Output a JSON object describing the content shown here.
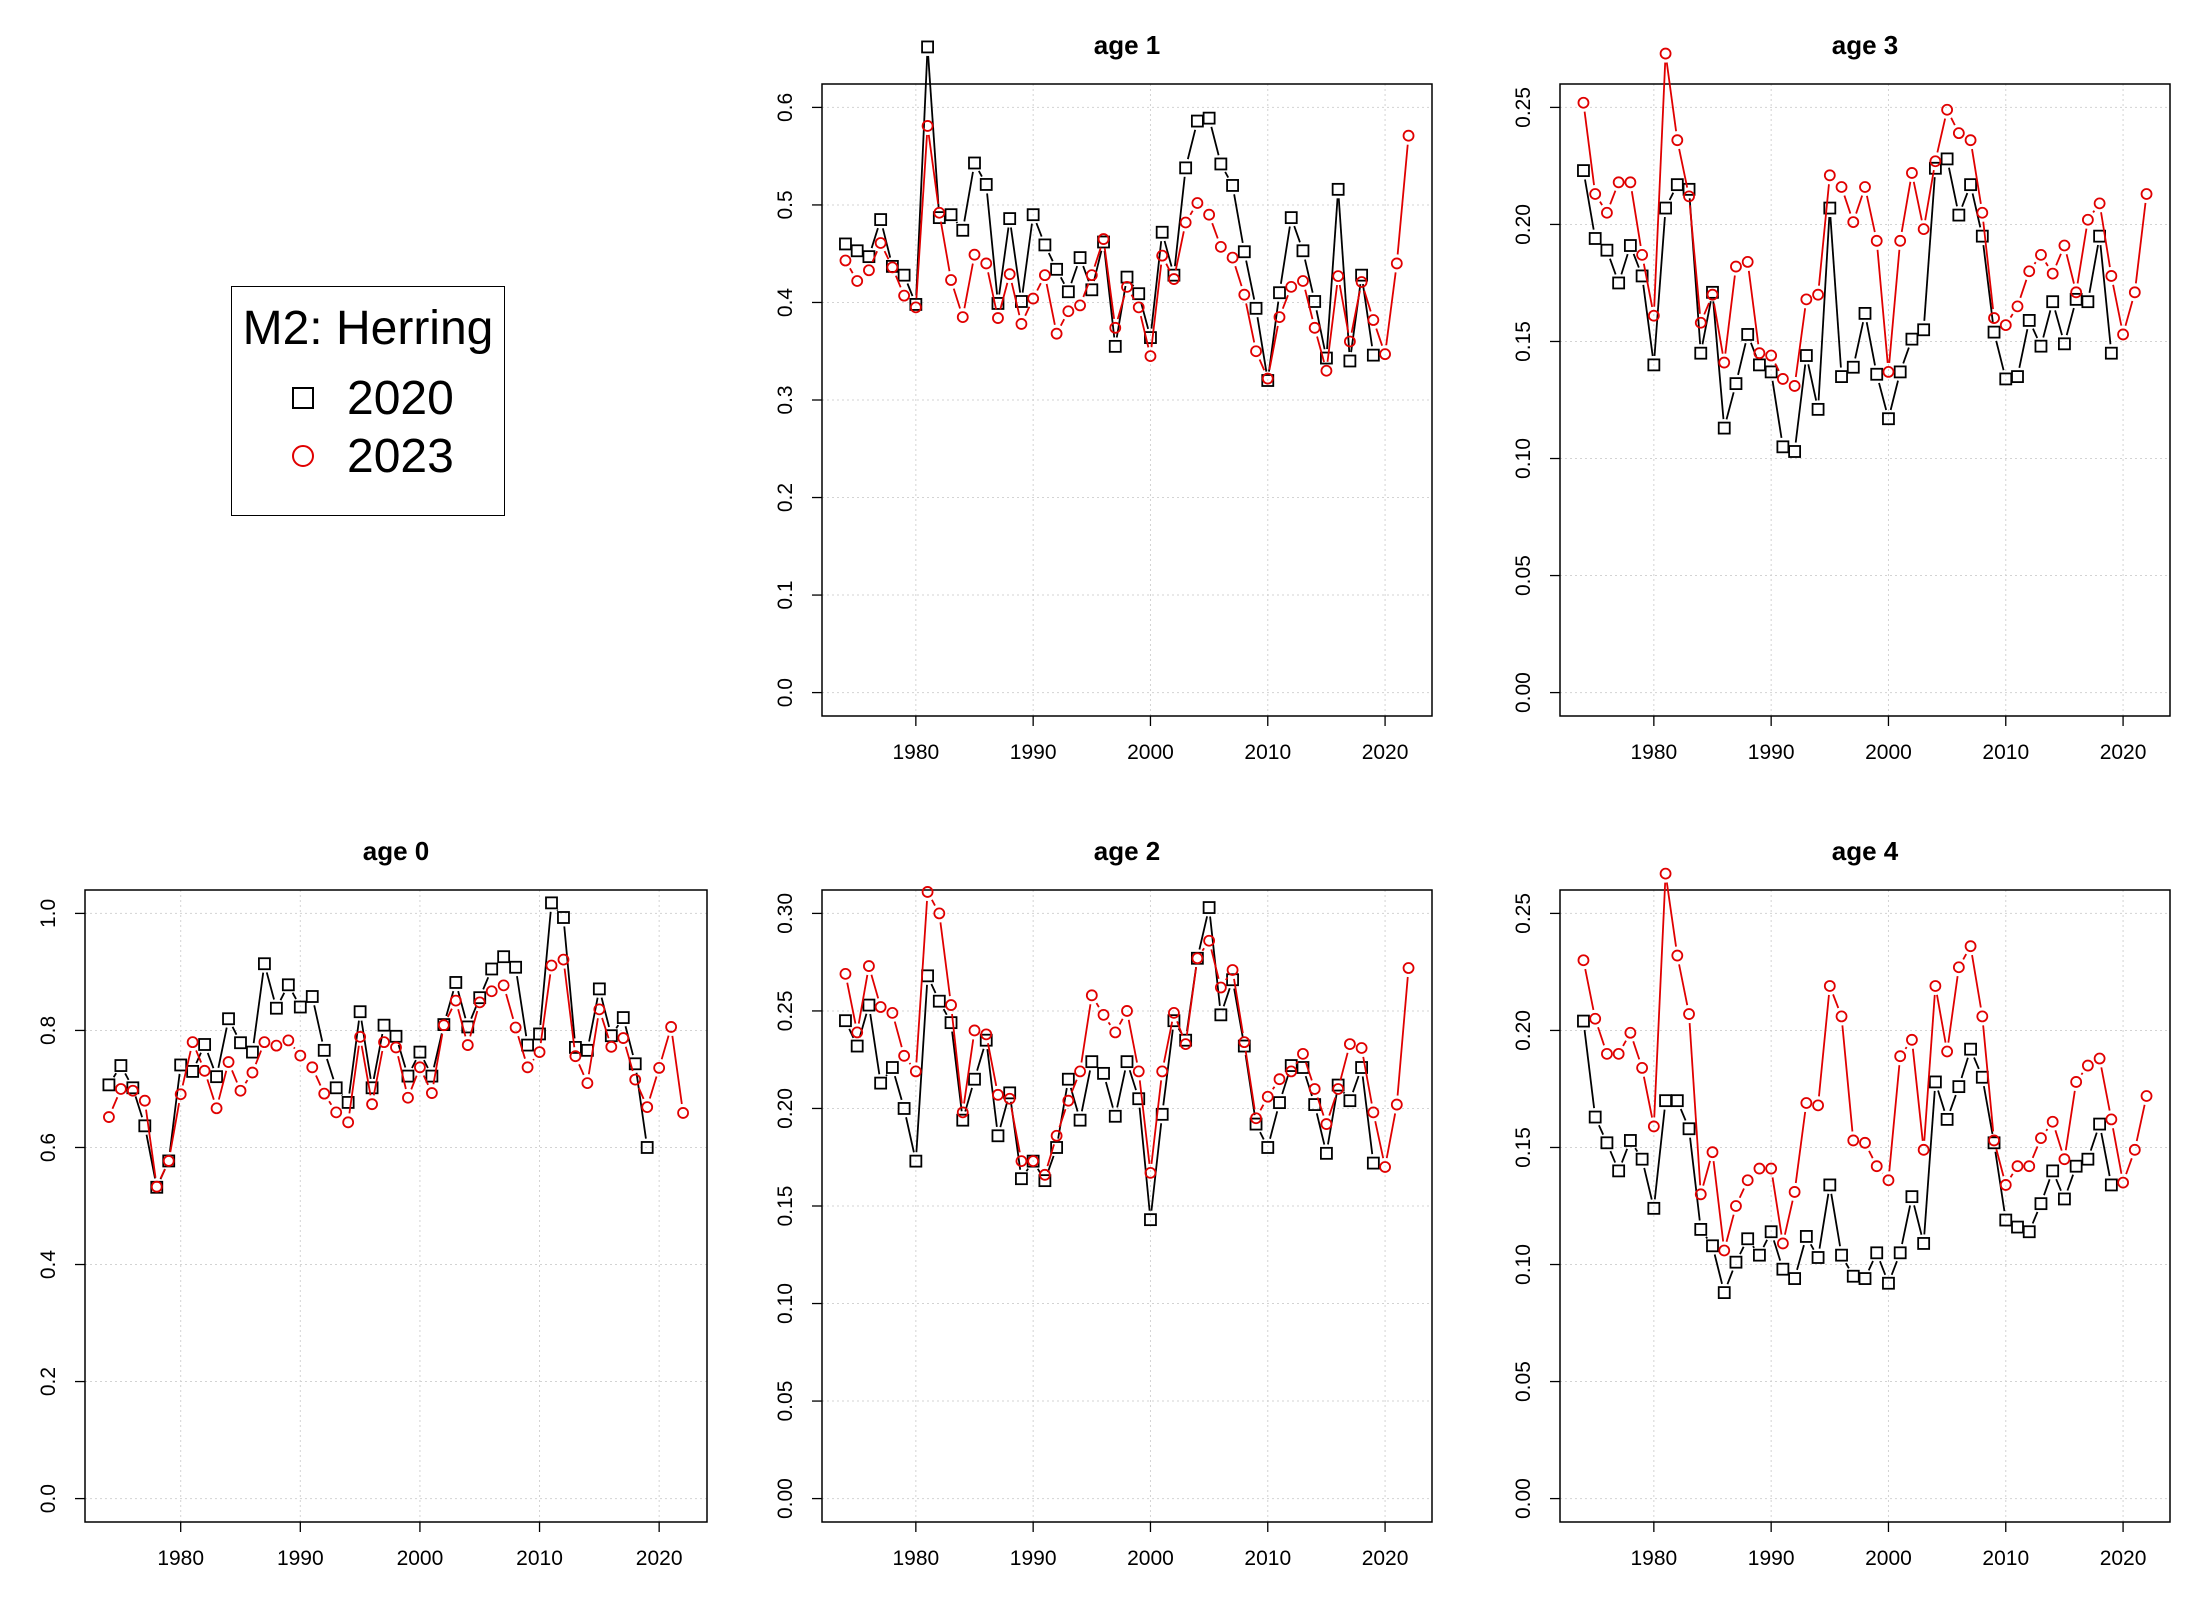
{
  "legend": {
    "title": "M2: Herring",
    "entries": [
      {
        "label": "2020",
        "symbol": "square",
        "color": "#000000"
      },
      {
        "label": "2023",
        "symbol": "circle",
        "color": "#e00000"
      }
    ]
  },
  "colors": {
    "series_2020": "#000000",
    "series_2023": "#e00000",
    "grid": "#d3d3d3"
  },
  "chart_data": [
    {
      "type": "line",
      "title": "age 1",
      "xlim": [
        1972,
        2024
      ],
      "ylim": [
        0,
        0.6
      ],
      "xticks": [
        "1980",
        "1990",
        "2000",
        "2010",
        "2020"
      ],
      "yticks": [
        "0.0",
        "0.1",
        "0.2",
        "0.3",
        "0.4",
        "0.5",
        "0.6"
      ],
      "grid": true,
      "series": [
        {
          "name": "2020",
          "start_year": 1974,
          "values": [
            0.46,
            0.453,
            0.447,
            0.485,
            0.437,
            0.428,
            0.398,
            0.662,
            0.487,
            0.49,
            0.474,
            0.543,
            0.521,
            0.399,
            0.486,
            0.401,
            0.49,
            0.459,
            0.434,
            0.411,
            0.446,
            0.413,
            0.462,
            0.355,
            0.426,
            0.409,
            0.364,
            0.472,
            0.428,
            0.538,
            0.586,
            0.589,
            0.542,
            0.52,
            0.452,
            0.394,
            0.32,
            0.41,
            0.487,
            0.453,
            0.401,
            0.343,
            0.516,
            0.34,
            0.428,
            0.346
          ]
        },
        {
          "name": "2023",
          "start_year": 1974,
          "values": [
            0.443,
            0.422,
            0.433,
            0.461,
            0.436,
            0.407,
            0.395,
            0.581,
            0.492,
            0.423,
            0.385,
            0.449,
            0.44,
            0.384,
            0.429,
            0.378,
            0.404,
            0.428,
            0.368,
            0.391,
            0.397,
            0.428,
            0.465,
            0.374,
            0.416,
            0.395,
            0.345,
            0.448,
            0.424,
            0.482,
            0.502,
            0.49,
            0.457,
            0.446,
            0.408,
            0.35,
            0.322,
            0.385,
            0.416,
            0.422,
            0.374,
            0.33,
            0.427,
            0.36,
            0.421,
            0.382,
            0.347,
            0.44,
            0.571
          ]
        }
      ]
    },
    {
      "type": "line",
      "title": "age 3",
      "xlim": [
        1972,
        2024
      ],
      "ylim": [
        0,
        0.25
      ],
      "xticks": [
        "1980",
        "1990",
        "2000",
        "2010",
        "2020"
      ],
      "yticks": [
        "0.00",
        "0.05",
        "0.10",
        "0.15",
        "0.20",
        "0.25"
      ],
      "grid": true,
      "series": [
        {
          "name": "2020",
          "start_year": 1974,
          "values": [
            0.223,
            0.194,
            0.189,
            0.175,
            0.191,
            0.178,
            0.14,
            0.207,
            0.217,
            0.215,
            0.145,
            0.171,
            0.113,
            0.132,
            0.153,
            0.14,
            0.137,
            0.105,
            0.103,
            0.144,
            0.121,
            0.207,
            0.135,
            0.139,
            0.162,
            0.136,
            0.117,
            0.137,
            0.151,
            0.155,
            0.224,
            0.228,
            0.204,
            0.217,
            0.195,
            0.154,
            0.134,
            0.135,
            0.159,
            0.148,
            0.167,
            0.149,
            0.168,
            0.167,
            0.195,
            0.145
          ]
        },
        {
          "name": "2023",
          "start_year": 1974,
          "values": [
            0.252,
            0.213,
            0.205,
            0.218,
            0.218,
            0.187,
            0.161,
            0.273,
            0.236,
            0.212,
            0.158,
            0.17,
            0.141,
            0.182,
            0.184,
            0.145,
            0.144,
            0.134,
            0.131,
            0.168,
            0.17,
            0.221,
            0.216,
            0.201,
            0.216,
            0.193,
            0.137,
            0.193,
            0.222,
            0.198,
            0.227,
            0.249,
            0.239,
            0.236,
            0.205,
            0.16,
            0.157,
            0.165,
            0.18,
            0.187,
            0.179,
            0.191,
            0.171,
            0.202,
            0.209,
            0.178,
            0.153,
            0.171,
            0.213
          ]
        }
      ]
    },
    {
      "type": "line",
      "title": "age 0",
      "xlim": [
        1972,
        2024
      ],
      "ylim": [
        0,
        1.0
      ],
      "xticks": [
        "1980",
        "1990",
        "2000",
        "2010",
        "2020"
      ],
      "yticks": [
        "0.0",
        "0.2",
        "0.4",
        "0.6",
        "0.8",
        "1.0"
      ],
      "grid": true,
      "series": [
        {
          "name": "2020",
          "start_year": 1974,
          "values": [
            0.707,
            0.74,
            0.702,
            0.637,
            0.532,
            0.577,
            0.741,
            0.73,
            0.776,
            0.721,
            0.82,
            0.779,
            0.763,
            0.914,
            0.838,
            0.878,
            0.84,
            0.858,
            0.766,
            0.702,
            0.677,
            0.832,
            0.702,
            0.809,
            0.79,
            0.722,
            0.763,
            0.722,
            0.81,
            0.882,
            0.806,
            0.856,
            0.905,
            0.926,
            0.908,
            0.775,
            0.794,
            1.018,
            0.993,
            0.771,
            0.766,
            0.871,
            0.791,
            0.822,
            0.743,
            0.6
          ]
        },
        {
          "name": "2023",
          "start_year": 1974,
          "values": [
            0.652,
            0.7,
            0.697,
            0.68,
            0.533,
            0.577,
            0.691,
            0.78,
            0.731,
            0.667,
            0.746,
            0.697,
            0.728,
            0.78,
            0.774,
            0.783,
            0.757,
            0.737,
            0.692,
            0.66,
            0.643,
            0.789,
            0.674,
            0.78,
            0.771,
            0.685,
            0.737,
            0.693,
            0.809,
            0.851,
            0.775,
            0.848,
            0.867,
            0.877,
            0.805,
            0.737,
            0.763,
            0.911,
            0.921,
            0.756,
            0.71,
            0.836,
            0.772,
            0.787,
            0.716,
            0.669,
            0.736,
            0.806,
            0.659
          ]
        }
      ]
    },
    {
      "type": "line",
      "title": "age 2",
      "xlim": [
        1972,
        2024
      ],
      "ylim": [
        0,
        0.3
      ],
      "xticks": [
        "1980",
        "1990",
        "2000",
        "2010",
        "2020"
      ],
      "yticks": [
        "0.00",
        "0.05",
        "0.10",
        "0.15",
        "0.20",
        "0.25",
        "0.30"
      ],
      "grid": true,
      "series": [
        {
          "name": "2020",
          "start_year": 1974,
          "values": [
            0.245,
            0.232,
            0.253,
            0.213,
            0.221,
            0.2,
            0.173,
            0.268,
            0.255,
            0.244,
            0.194,
            0.215,
            0.235,
            0.186,
            0.208,
            0.164,
            0.173,
            0.163,
            0.18,
            0.215,
            0.194,
            0.224,
            0.218,
            0.196,
            0.224,
            0.205,
            0.143,
            0.197,
            0.245,
            0.235,
            0.277,
            0.303,
            0.248,
            0.266,
            0.232,
            0.192,
            0.18,
            0.203,
            0.222,
            0.221,
            0.202,
            0.177,
            0.212,
            0.204,
            0.221,
            0.172
          ]
        },
        {
          "name": "2023",
          "start_year": 1974,
          "values": [
            0.269,
            0.239,
            0.273,
            0.252,
            0.249,
            0.227,
            0.219,
            0.311,
            0.3,
            0.253,
            0.198,
            0.24,
            0.238,
            0.207,
            0.205,
            0.173,
            0.173,
            0.166,
            0.186,
            0.204,
            0.219,
            0.258,
            0.248,
            0.239,
            0.25,
            0.219,
            0.167,
            0.219,
            0.249,
            0.233,
            0.277,
            0.286,
            0.262,
            0.271,
            0.234,
            0.195,
            0.206,
            0.215,
            0.219,
            0.228,
            0.21,
            0.192,
            0.21,
            0.233,
            0.231,
            0.198,
            0.17,
            0.202,
            0.272
          ]
        }
      ]
    },
    {
      "type": "line",
      "title": "age 4",
      "xlim": [
        1972,
        2024
      ],
      "ylim": [
        0,
        0.25
      ],
      "xticks": [
        "1980",
        "1990",
        "2000",
        "2010",
        "2020"
      ],
      "yticks": [
        "0.00",
        "0.05",
        "0.10",
        "0.15",
        "0.20",
        "0.25"
      ],
      "grid": true,
      "series": [
        {
          "name": "2020",
          "start_year": 1974,
          "values": [
            0.204,
            0.163,
            0.152,
            0.14,
            0.153,
            0.145,
            0.124,
            0.17,
            0.17,
            0.158,
            0.115,
            0.108,
            0.088,
            0.101,
            0.111,
            0.104,
            0.114,
            0.098,
            0.094,
            0.112,
            0.103,
            0.134,
            0.104,
            0.095,
            0.094,
            0.105,
            0.092,
            0.105,
            0.129,
            0.109,
            0.178,
            0.162,
            0.176,
            0.192,
            0.18,
            0.152,
            0.119,
            0.116,
            0.114,
            0.126,
            0.14,
            0.128,
            0.142,
            0.145,
            0.16,
            0.134
          ]
        },
        {
          "name": "2023",
          "start_year": 1974,
          "values": [
            0.23,
            0.205,
            0.19,
            0.19,
            0.199,
            0.184,
            0.159,
            0.267,
            0.232,
            0.207,
            0.13,
            0.148,
            0.106,
            0.125,
            0.136,
            0.141,
            0.141,
            0.109,
            0.131,
            0.169,
            0.168,
            0.219,
            0.206,
            0.153,
            0.152,
            0.142,
            0.136,
            0.189,
            0.196,
            0.149,
            0.219,
            0.191,
            0.227,
            0.236,
            0.206,
            0.153,
            0.134,
            0.142,
            0.142,
            0.154,
            0.161,
            0.145,
            0.178,
            0.185,
            0.188,
            0.162,
            0.135,
            0.149,
            0.172
          ]
        }
      ]
    }
  ]
}
